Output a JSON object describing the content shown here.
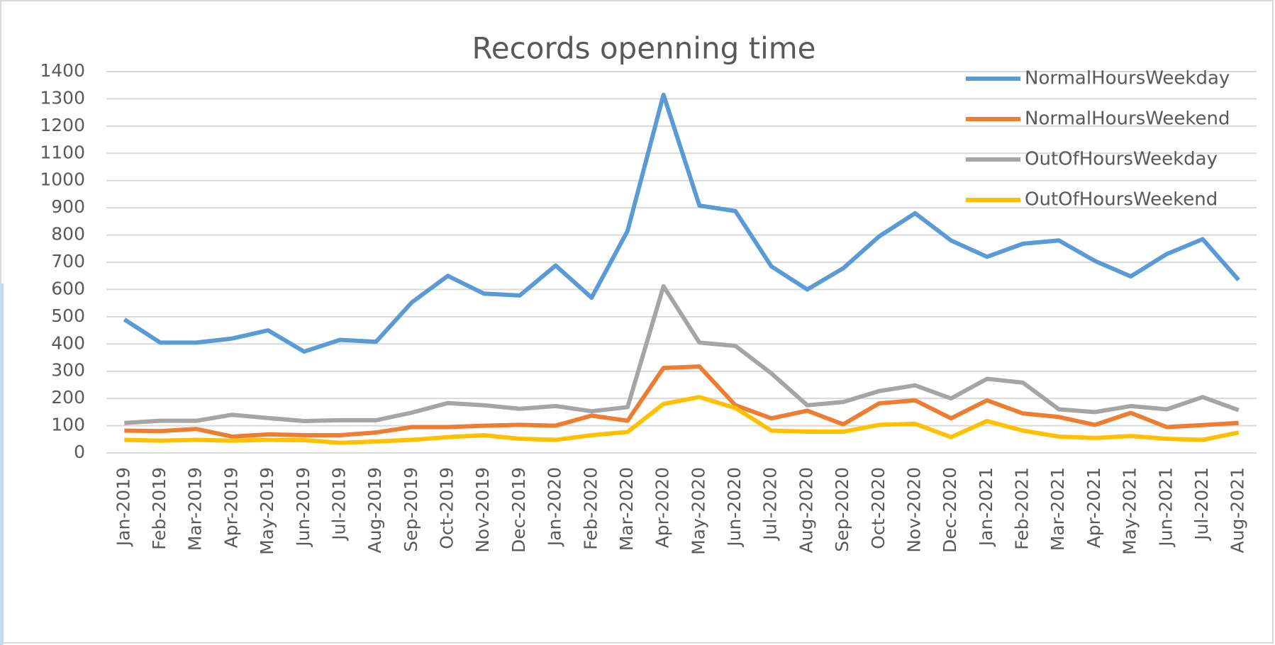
{
  "chart_data": {
    "type": "line",
    "title": "Records openning time",
    "categories": [
      "Jan-2019",
      "Feb-2019",
      "Mar-2019",
      "Apr-2019",
      "May-2019",
      "Jun-2019",
      "Jul-2019",
      "Aug-2019",
      "Sep-2019",
      "Oct-2019",
      "Nov-2019",
      "Dec-2019",
      "Jan-2020",
      "Feb-2020",
      "Mar-2020",
      "Apr-2020",
      "May-2020",
      "Jun-2020",
      "Jul-2020",
      "Aug-2020",
      "Sep-2020",
      "Oct-2020",
      "Nov-2020",
      "Dec-2020",
      "Jan-2021",
      "Feb-2021",
      "Mar-2021",
      "Apr-2021",
      "May-2021",
      "Jun-2021",
      "Jul-2021",
      "Aug-2021"
    ],
    "series": [
      {
        "name": "NormalHoursWeekday",
        "color": "#5b9bd5",
        "values": [
          490,
          405,
          405,
          420,
          450,
          372,
          415,
          408,
          553,
          650,
          585,
          578,
          688,
          570,
          815,
          1315,
          908,
          888,
          685,
          600,
          678,
          795,
          880,
          780,
          720,
          768,
          780,
          705,
          648,
          730,
          785,
          635
        ]
      },
      {
        "name": "NormalHoursWeekend",
        "color": "#ed7d31",
        "values": [
          82,
          80,
          88,
          60,
          68,
          65,
          65,
          75,
          95,
          95,
          100,
          103,
          100,
          137,
          118,
          312,
          317,
          175,
          127,
          155,
          105,
          182,
          193,
          127,
          193,
          145,
          132,
          103,
          147,
          95,
          102,
          110
        ]
      },
      {
        "name": "OutOfHoursWeekday",
        "color": "#a5a5a5",
        "values": [
          110,
          118,
          118,
          140,
          128,
          117,
          120,
          120,
          148,
          183,
          175,
          162,
          172,
          153,
          168,
          612,
          405,
          393,
          292,
          175,
          187,
          227,
          248,
          200,
          272,
          258,
          160,
          150,
          172,
          160,
          205,
          157
        ]
      },
      {
        "name": "OutOfHoursWeekend",
        "color": "#ffc000",
        "values": [
          48,
          45,
          48,
          45,
          48,
          47,
          37,
          42,
          48,
          58,
          65,
          52,
          48,
          65,
          77,
          180,
          205,
          165,
          82,
          78,
          78,
          103,
          107,
          58,
          117,
          82,
          60,
          55,
          62,
          52,
          48,
          75
        ]
      }
    ],
    "ylim": [
      0,
      1400
    ],
    "yticks": [
      0,
      100,
      200,
      300,
      400,
      500,
      600,
      700,
      800,
      900,
      1000,
      1100,
      1200,
      1300,
      1400
    ],
    "grid": true,
    "legend": "top-right"
  }
}
